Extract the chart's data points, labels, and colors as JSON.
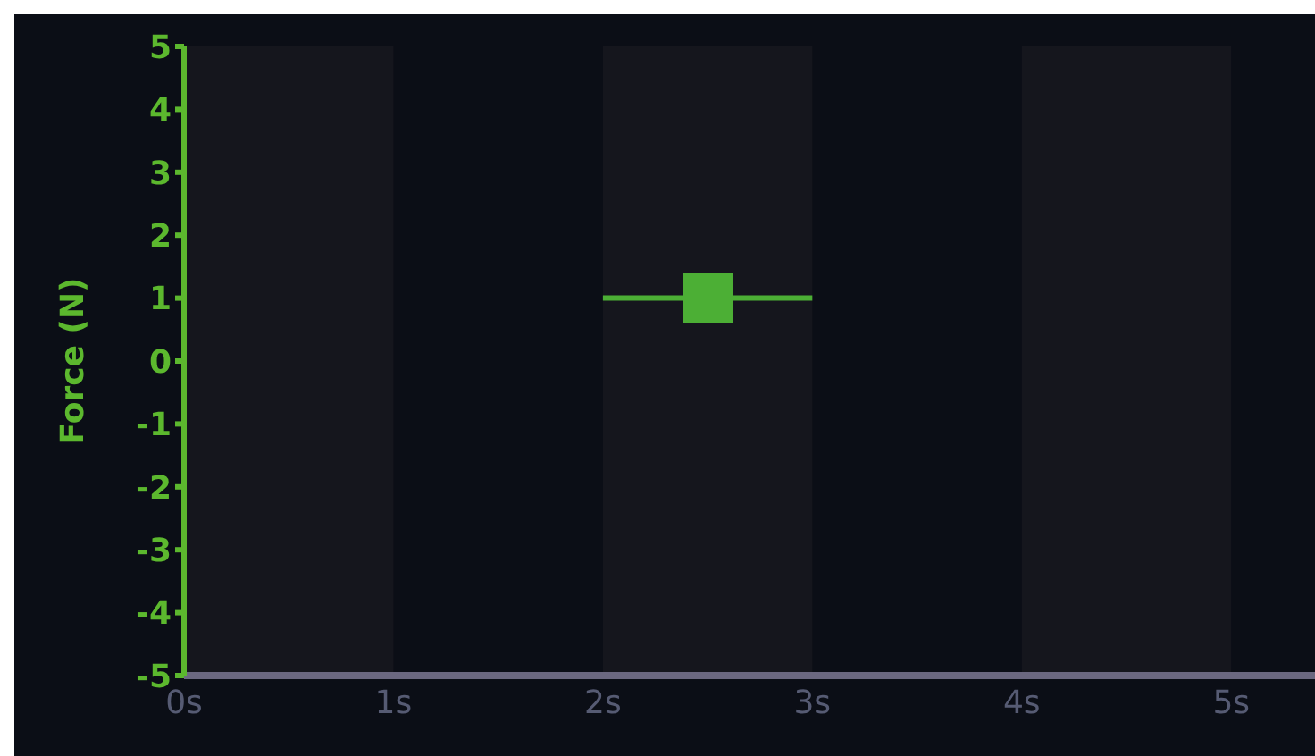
{
  "chart_data": {
    "type": "scatter",
    "ylabel": "Force (N)",
    "x": [
      2.5
    ],
    "series": [
      {
        "color": "#4caf35",
        "values": [
          1
        ],
        "xerrors": [
          [
            2,
            3
          ]
        ]
      }
    ],
    "marker": "square",
    "xlim": [
      0,
      5.4
    ],
    "xticks": [
      {
        "value": 0,
        "label": "0s"
      },
      {
        "value": 1,
        "label": "1s"
      },
      {
        "value": 2,
        "label": "2s"
      },
      {
        "value": 3,
        "label": "3s"
      },
      {
        "value": 4,
        "label": "4s"
      },
      {
        "value": 5,
        "label": "5s"
      }
    ],
    "ylim": [
      -5,
      5
    ],
    "yticks": [
      -5,
      -4,
      -3,
      -2,
      -1,
      0,
      1,
      2,
      3,
      4,
      5
    ],
    "bands": [
      {
        "axis": "x",
        "from": 0,
        "to": 1,
        "color": "#15161d"
      },
      {
        "axis": "x",
        "from": 2,
        "to": 3,
        "color": "#15161d"
      },
      {
        "axis": "x",
        "from": 4,
        "to": 5,
        "color": "#15161d"
      }
    ]
  }
}
